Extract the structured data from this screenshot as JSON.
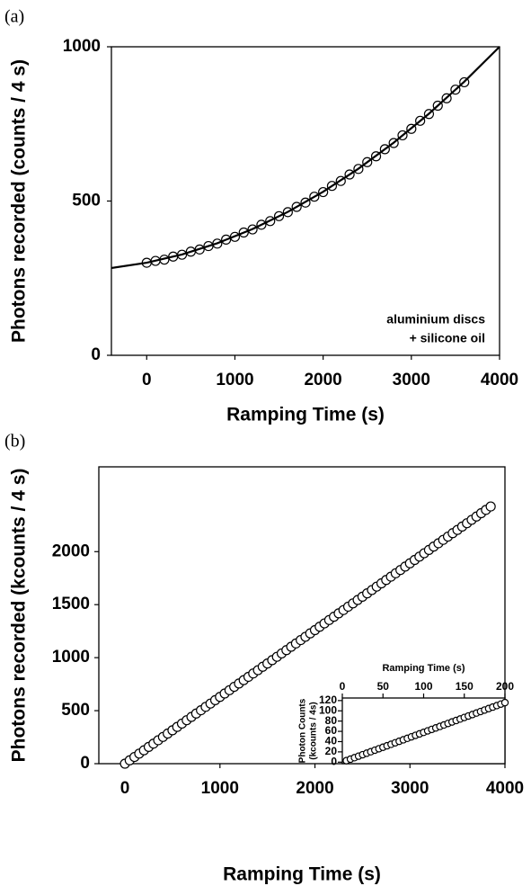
{
  "chart_data": [
    {
      "type": "scatter",
      "panel_label": "(a)",
      "x_label": "Ramping Time (s)",
      "y_label": "Photons recorded (counts / 4 s)",
      "annotation": [
        "aluminium discs",
        "+ silicone oil"
      ],
      "xlim": [
        -400,
        4000
      ],
      "ylim": [
        0,
        1000
      ],
      "xticks": [
        0,
        1000,
        2000,
        3000,
        4000
      ],
      "yticks": [
        0,
        500,
        1000
      ],
      "series": [
        {
          "style": "open-circle",
          "color": "#000000",
          "x": [
            0,
            100,
            200,
            300,
            400,
            500,
            600,
            700,
            800,
            900,
            1000,
            1100,
            1200,
            1300,
            1400,
            1500,
            1600,
            1700,
            1800,
            1900,
            2000,
            2100,
            2200,
            2300,
            2400,
            2500,
            2600,
            2700,
            2800,
            2900,
            3000,
            3100,
            3200,
            3300,
            3400,
            3500,
            3600
          ],
          "values": [
            300,
            306,
            310,
            320,
            326,
            336,
            343,
            354,
            362,
            375,
            384,
            398,
            408,
            423,
            435,
            451,
            464,
            481,
            495,
            514,
            529,
            549,
            565,
            586,
            604,
            626,
            645,
            668,
            688,
            713,
            734,
            760,
            782,
            809,
            833,
            861,
            885
          ]
        },
        {
          "style": "line",
          "color": "#000000",
          "x": [
            -400,
            0,
            400,
            800,
            1200,
            1600,
            2000,
            2400,
            2800,
            3200,
            3600,
            4000
          ],
          "values": [
            283,
            300,
            326.8,
            363.2,
            409.2,
            464.8,
            530,
            604.8,
            689.2,
            783.2,
            886.8,
            1000
          ]
        }
      ]
    },
    {
      "type": "scatter",
      "panel_label": "(b)",
      "x_label": "Ramping Time (s)",
      "y_label": "Photons recorded (kcounts / 4 s)",
      "xlim": [
        -275,
        4000
      ],
      "ylim": [
        0,
        2800
      ],
      "xticks": [
        0,
        1000,
        2000,
        3000,
        4000
      ],
      "yticks": [
        0,
        500,
        1000,
        1500,
        2000
      ],
      "series": [
        {
          "style": "open-circle",
          "color": "#000000",
          "x": [
            0,
            50,
            100,
            150,
            200,
            250,
            300,
            350,
            400,
            450,
            500,
            550,
            600,
            650,
            700,
            750,
            800,
            850,
            900,
            950,
            1000,
            1050,
            1100,
            1150,
            1200,
            1250,
            1300,
            1350,
            1400,
            1450,
            1500,
            1550,
            1600,
            1650,
            1700,
            1750,
            1800,
            1850,
            1900,
            1950,
            2000,
            2050,
            2100,
            2150,
            2200,
            2250,
            2300,
            2350,
            2400,
            2450,
            2500,
            2550,
            2600,
            2650,
            2700,
            2750,
            2800,
            2850,
            2900,
            2950,
            3000,
            3050,
            3100,
            3150,
            3200,
            3250,
            3300,
            3350,
            3400,
            3450,
            3500,
            3550,
            3600,
            3650,
            3700,
            3750,
            3800,
            3850
          ],
          "values": [
            0,
            32,
            63,
            95,
            126,
            158,
            189,
            221,
            252,
            284,
            315,
            347,
            378,
            410,
            441,
            473,
            504,
            536,
            567,
            599,
            630,
            662,
            693,
            725,
            756,
            788,
            819,
            851,
            882,
            914,
            945,
            977,
            1008,
            1040,
            1071,
            1103,
            1134,
            1166,
            1197,
            1229,
            1260,
            1292,
            1323,
            1355,
            1386,
            1418,
            1449,
            1481,
            1512,
            1544,
            1575,
            1607,
            1638,
            1670,
            1701,
            1733,
            1764,
            1796,
            1827,
            1859,
            1890,
            1922,
            1953,
            1985,
            2016,
            2048,
            2079,
            2111,
            2142,
            2174,
            2205,
            2237,
            2268,
            2300,
            2331,
            2363,
            2394,
            2426
          ]
        }
      ]
    },
    {
      "type": "scatter",
      "x_label": "Ramping Time (s)",
      "y_label": [
        "Photon Counts",
        "(kcounts / 4s)"
      ],
      "x_axis_position": "top",
      "xlim": [
        0,
        200
      ],
      "ylim": [
        -3,
        125
      ],
      "xticks": [
        0,
        50,
        100,
        150,
        200
      ],
      "yticks": [
        0,
        20,
        40,
        60,
        80,
        100,
        120
      ],
      "series": [
        {
          "style": "open-circle",
          "color": "#000000",
          "x": [
            5,
            10,
            15,
            20,
            25,
            30,
            35,
            40,
            45,
            50,
            55,
            60,
            65,
            70,
            75,
            80,
            85,
            90,
            95,
            100,
            105,
            110,
            115,
            120,
            125,
            130,
            135,
            140,
            145,
            150,
            155,
            160,
            165,
            170,
            175,
            180,
            185,
            190,
            195,
            200
          ],
          "values": [
            2.9,
            5.8,
            8.7,
            11.6,
            14.5,
            17.4,
            20.3,
            23.2,
            26.1,
            29,
            31.9,
            34.8,
            37.7,
            40.6,
            43.5,
            46.4,
            49.3,
            52.2,
            55.1,
            58,
            60.9,
            63.8,
            66.7,
            69.6,
            72.5,
            75.4,
            78.3,
            81.2,
            84.1,
            87,
            89.9,
            92.8,
            95.7,
            98.6,
            101.5,
            104.4,
            107.3,
            110.2,
            113.1,
            116
          ]
        }
      ]
    }
  ]
}
